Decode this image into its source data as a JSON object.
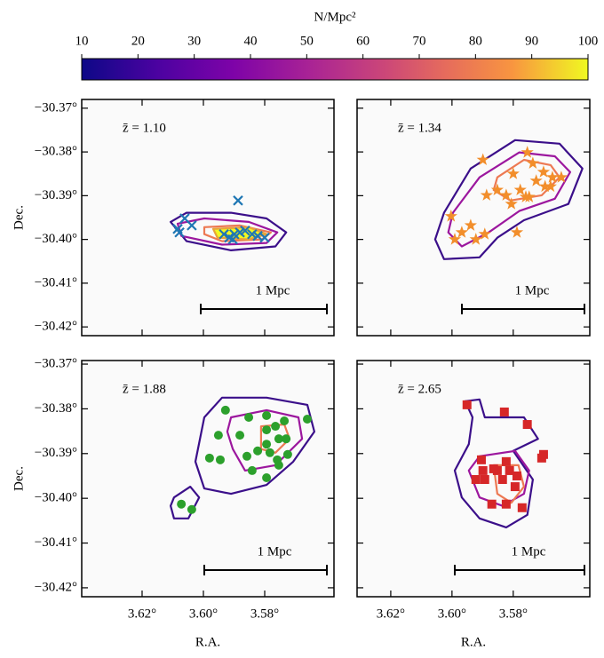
{
  "chart_data": [
    {
      "type": "colorbar",
      "label": "N/Mpc²",
      "xlim": [
        10,
        100
      ],
      "xticks": [
        10,
        20,
        30,
        40,
        50,
        60,
        70,
        80,
        90,
        100
      ]
    },
    {
      "type": "scatter",
      "annotation": "z̄ = 1.10",
      "scale_label": "1 Mpc",
      "ylabel": "Dec.",
      "xlim": [
        3.6397,
        3.5574
      ],
      "ylim": [
        -30.422,
        -30.368
      ],
      "xticks": [
        3.62,
        3.6,
        3.58
      ],
      "yticks": [
        {
          "value": -30.37,
          "label": "−30.37°"
        },
        {
          "value": -30.38,
          "label": "−30.38°"
        },
        {
          "value": -30.39,
          "label": "−30.39°"
        },
        {
          "value": -30.4,
          "label": "−30.40°"
        },
        {
          "value": -30.41,
          "label": "−30.41°"
        },
        {
          "value": -30.42,
          "label": "−30.42°"
        }
      ],
      "contours": [
        {
          "color": "#3b0f8a",
          "x": [
            3.6107,
            3.6055,
            3.591,
            3.5794,
            3.573,
            3.5765,
            3.591,
            3.6055
          ],
          "y": [
            -30.396,
            -30.3939,
            -30.3939,
            -30.3952,
            -30.3984,
            -30.4016,
            -30.4025,
            -30.4004
          ]
        },
        {
          "color": "#9c179e",
          "x": [
            3.6084,
            3.5997,
            3.5852,
            3.5759,
            3.5794,
            3.5939,
            3.6072
          ],
          "y": [
            -30.3964,
            -30.3952,
            -30.396,
            -30.3984,
            -30.4008,
            -30.4012,
            -30.3992
          ]
        },
        {
          "color": "#ed7953",
          "x": [
            3.5997,
            3.5881,
            3.578,
            3.5809,
            3.5939,
            3.5997
          ],
          "y": [
            -30.3972,
            -30.3968,
            -30.3984,
            -30.4,
            -30.4004,
            -30.3988
          ]
        },
        {
          "color": "#e8a33a",
          "fill": "#f0f921",
          "x": [
            3.5968,
            3.5852,
            3.5794,
            3.5852,
            3.5954
          ],
          "y": [
            -30.3976,
            -30.3972,
            -30.3988,
            -30.4,
            -30.3996
          ]
        }
      ],
      "series": [
        {
          "marker": "x",
          "color": "#1f77b4",
          "x": [
            3.5887,
            3.6061,
            3.6084,
            3.6038,
            3.6078,
            3.5933,
            3.5916,
            3.5899,
            3.5881,
            3.5864,
            3.5841,
            3.5823,
            3.58,
            3.5904
          ],
          "y": [
            -30.3911,
            -30.3952,
            -30.3976,
            -30.3968,
            -30.3984,
            -30.3988,
            -30.3996,
            -30.3988,
            -30.3984,
            -30.398,
            -30.3988,
            -30.3992,
            -30.3996,
            -30.4
          ]
        }
      ]
    },
    {
      "type": "scatter",
      "annotation": "z̄ = 1.34",
      "scale_label": "1 Mpc",
      "xlim": [
        3.631,
        3.555
      ],
      "ylim": [
        -30.422,
        -30.368
      ],
      "xticks": [
        3.62,
        3.6,
        3.58
      ],
      "yticks": [
        -30.37,
        -30.38,
        -30.39,
        -30.4,
        -30.41,
        -30.42
      ],
      "contours": [
        {
          "color": "#3b0f8a",
          "x": [
            3.6026,
            3.5939,
            3.5794,
            3.5649,
            3.5574,
            3.562,
            3.5765,
            3.5852,
            3.591,
            3.6026,
            3.6055
          ],
          "y": [
            -30.3939,
            -30.3838,
            -30.3773,
            -30.3781,
            -30.3838,
            -30.3919,
            -30.3956,
            -30.3996,
            -30.4041,
            -30.4045,
            -30.4
          ]
        },
        {
          "color": "#9c179e",
          "x": [
            3.5997,
            3.591,
            3.578,
            3.5664,
            3.5614,
            3.5664,
            3.578,
            3.588,
            3.5968,
            3.6012
          ],
          "y": [
            -30.3939,
            -30.3858,
            -30.3801,
            -30.381,
            -30.3846,
            -30.3907,
            -30.3935,
            -30.3984,
            -30.4016,
            -30.3984
          ]
        },
        {
          "color": "#ed7953",
          "x": [
            3.5852,
            3.5765,
            3.5678,
            3.5649,
            3.5707,
            3.5809,
            3.5864
          ],
          "y": [
            -30.3858,
            -30.3818,
            -30.383,
            -30.3858,
            -30.3899,
            -30.3911,
            -30.3887
          ]
        }
      ],
      "series": [
        {
          "marker": "star",
          "color": "#f28e2b",
          "x": [
            3.5899,
            3.58,
            3.5754,
            3.5736,
            3.5701,
            3.5725,
            3.5696,
            3.5672,
            3.5777,
            3.5823,
            3.5852,
            3.5887,
            3.5748,
            3.5806,
            3.6003,
            3.5939,
            3.5968,
            3.5922,
            3.5991,
            3.5893,
            3.5788,
            3.5759,
            3.5678,
            3.5643
          ],
          "y": [
            -30.3818,
            -30.385,
            -30.3801,
            -30.3826,
            -30.3846,
            -30.3866,
            -30.3879,
            -30.3858,
            -30.3887,
            -30.3899,
            -30.3887,
            -30.3899,
            -30.3903,
            -30.3919,
            -30.3947,
            -30.3968,
            -30.3984,
            -30.4,
            -30.4,
            -30.3988,
            -30.3984,
            -30.3903,
            -30.3879,
            -30.3858
          ]
        }
      ]
    },
    {
      "type": "scatter",
      "annotation": "z̄ = 1.88",
      "scale_label": "1 Mpc",
      "ylabel": "Dec.",
      "xlabel": "R.A.",
      "xlim": [
        3.6397,
        3.5574
      ],
      "ylim": [
        -30.422,
        -30.3692
      ],
      "xticks": [
        {
          "value": 3.62,
          "label": "3.62°"
        },
        {
          "value": 3.6,
          "label": "3.60°"
        },
        {
          "value": 3.58,
          "label": "3.58°"
        }
      ],
      "yticks": [
        {
          "value": -30.37,
          "label": "−30.37°"
        },
        {
          "value": -30.38,
          "label": "−30.38°"
        },
        {
          "value": -30.39,
          "label": "−30.39°"
        },
        {
          "value": -30.4,
          "label": "−30.40°"
        },
        {
          "value": -30.41,
          "label": "−30.41°"
        },
        {
          "value": -30.42,
          "label": "−30.42°"
        }
      ],
      "contours": [
        {
          "color": "#3b0f8a",
          "x": [
            3.5997,
            3.5939,
            3.5794,
            3.5661,
            3.5638,
            3.5707,
            3.5794,
            3.591,
            3.5997,
            3.6026
          ],
          "y": [
            -30.3819,
            -30.3775,
            -30.3775,
            -30.3791,
            -30.3851,
            -30.3918,
            -30.397,
            -30.399,
            -30.3978,
            -30.3918
          ]
        },
        {
          "color": "#3b0f8a",
          "x": [
            3.6096,
            3.6043,
            3.6014,
            3.6049,
            3.6096,
            3.6107
          ],
          "y": [
            -30.3998,
            -30.3974,
            -30.3998,
            -30.4045,
            -30.4045,
            -30.4017
          ]
        },
        {
          "color": "#9c179e",
          "x": [
            3.591,
            3.5794,
            3.569,
            3.5678,
            3.5765,
            3.5864,
            3.5904,
            3.5922
          ],
          "y": [
            -30.3819,
            -30.3803,
            -30.3819,
            -30.3867,
            -30.3926,
            -30.3938,
            -30.389,
            -30.3851
          ]
        },
        {
          "color": "#ed7953",
          "x": [
            3.5812,
            3.5736,
            3.5719,
            3.5765,
            3.5812
          ],
          "y": [
            -30.3839,
            -30.3835,
            -30.3867,
            -30.3898,
            -30.389
          ]
        }
      ],
      "series": [
        {
          "marker": "circle",
          "color": "#2ca02c",
          "x": [
            3.5928,
            3.5852,
            3.5794,
            3.5736,
            3.5661,
            3.5881,
            3.5794,
            3.5754,
            3.5794,
            3.5823,
            3.5951,
            3.598,
            3.5945,
            3.5858,
            3.5783,
            3.5759,
            3.5725,
            3.5841,
            3.5794,
            3.5754,
            3.6072,
            3.6038,
            3.573,
            3.5765
          ],
          "y": [
            -30.3803,
            -30.3819,
            -30.3815,
            -30.3827,
            -30.3823,
            -30.3859,
            -30.3847,
            -30.3867,
            -30.3879,
            -30.3894,
            -30.3859,
            -30.391,
            -30.3914,
            -30.3906,
            -30.3898,
            -30.3914,
            -30.3902,
            -30.3938,
            -30.3954,
            -30.3926,
            -30.4013,
            -30.4025,
            -30.3867,
            -30.3839
          ]
        }
      ]
    },
    {
      "type": "scatter",
      "annotation": "z̄ = 2.65",
      "scale_label": "1 Mpc",
      "xlabel": "R.A.",
      "xlim": [
        3.631,
        3.555
      ],
      "ylim": [
        -30.422,
        -30.3692
      ],
      "xticks": [
        {
          "value": 3.62,
          "label": "3.62°"
        },
        {
          "value": 3.6,
          "label": "3.60°"
        },
        {
          "value": 3.58,
          "label": "3.58°"
        }
      ],
      "yticks": [
        -30.37,
        -30.38,
        -30.39,
        -30.4,
        -30.41,
        -30.42
      ],
      "contours": [
        {
          "color": "#3b0f8a",
          "x": [
            3.5957,
            3.591,
            3.5893,
            3.5765,
            3.5719,
            3.58,
            3.5736,
            3.5754,
            3.5823,
            3.591,
            3.5968,
            3.5991,
            3.5945,
            3.5933
          ],
          "y": [
            -30.3783,
            -30.3779,
            -30.3819,
            -30.3819,
            -30.3867,
            -30.3894,
            -30.3958,
            -30.4037,
            -30.4065,
            -30.4045,
            -30.3998,
            -30.3938,
            -30.3879,
            -30.3819
          ]
        },
        {
          "color": "#9c179e",
          "x": [
            3.591,
            3.5794,
            3.5748,
            3.5765,
            3.5835,
            3.591,
            3.5945
          ],
          "y": [
            -30.3906,
            -30.3894,
            -30.3938,
            -30.399,
            -30.4017,
            -30.3998,
            -30.3938
          ]
        },
        {
          "color": "#ed7953",
          "x": [
            3.5864,
            3.5783,
            3.5765,
            3.5806,
            3.5852
          ],
          "y": [
            -30.3926,
            -30.3926,
            -30.3974,
            -30.401,
            -30.399
          ]
        }
      ],
      "series": [
        {
          "marker": "square",
          "color": "#d62728",
          "x": [
            3.5951,
            3.5829,
            3.5754,
            3.5707,
            3.5701,
            3.5904,
            3.5823,
            3.5922,
            3.5893,
            3.5852,
            3.5864,
            3.5835,
            3.5788,
            3.5794,
            3.587,
            3.5823,
            3.5771,
            3.5812,
            3.5899
          ],
          "y": [
            -30.3791,
            -30.3807,
            -30.3835,
            -30.391,
            -30.3902,
            -30.3914,
            -30.3918,
            -30.3958,
            -30.3958,
            -30.3938,
            -30.3934,
            -30.3958,
            -30.395,
            -30.3974,
            -30.4013,
            -30.4013,
            -30.4021,
            -30.3938,
            -30.3938
          ]
        }
      ]
    }
  ]
}
